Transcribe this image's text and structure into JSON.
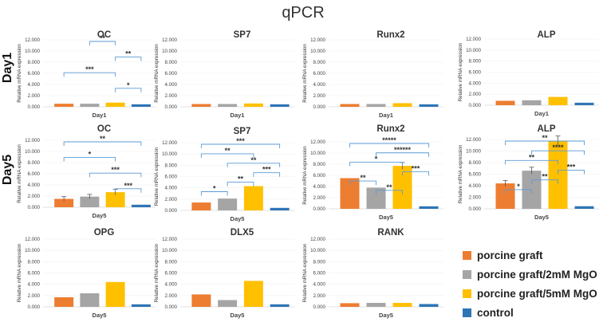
{
  "figure_title": "qPCR",
  "row_labels": [
    "Day1",
    "Day5"
  ],
  "legend": [
    {
      "label": "porcine graft",
      "color": "#ED7D31"
    },
    {
      "label": "porcine graft/2mM MgO",
      "color": "#A5A5A5"
    },
    {
      "label": "porcine graft/5mM MgO",
      "color": "#FFC000"
    },
    {
      "label": "control",
      "color": "#2E75B6"
    }
  ],
  "chart_data": [
    {
      "id": "d1-oc",
      "type": "bar",
      "title": "OC",
      "xlabel": "Day1",
      "ylabel": "Relative mRNA expression",
      "categories": [
        "porcine graft",
        "porcine graft/2mM MgO",
        "porcine graft/5mM MgO",
        "control"
      ],
      "values": [
        0.55,
        0.55,
        0.75,
        0.45
      ],
      "errors": [
        0,
        0,
        0,
        0
      ],
      "ylim": [
        0,
        12
      ],
      "yticks": [
        "0.000",
        "2.000",
        "4.000",
        "6.000",
        "8.000",
        "10.000",
        "12.000"
      ],
      "significance": [
        {
          "a": 1,
          "b": 2,
          "label": "**"
        },
        {
          "a": 2,
          "b": 3,
          "label": "**"
        },
        {
          "a": 0,
          "b": 2,
          "label": "***"
        },
        {
          "a": 2,
          "b": 3,
          "label": "*"
        }
      ]
    },
    {
      "id": "d1-sp7",
      "type": "bar",
      "title": "SP7",
      "xlabel": "Day1",
      "ylabel": "Relative mRNA expression",
      "categories": [
        "porcine graft",
        "porcine graft/2mM MgO",
        "porcine graft/5mM MgO",
        "control"
      ],
      "values": [
        0.5,
        0.5,
        0.6,
        0.45
      ],
      "errors": [
        0,
        0,
        0,
        0
      ],
      "ylim": [
        0,
        12
      ],
      "yticks": [
        "0.000",
        "2.000",
        "4.000",
        "6.000",
        "8.000",
        "10.000",
        "12.000"
      ],
      "significance": []
    },
    {
      "id": "d1-runx2",
      "type": "bar",
      "title": "Runx2",
      "xlabel": "Day1",
      "ylabel": "Relative mRNA expression",
      "categories": [
        "porcine graft",
        "porcine graft/2mM MgO",
        "porcine graft/5mM MgO",
        "control"
      ],
      "values": [
        0.5,
        0.5,
        0.65,
        0.45
      ],
      "errors": [
        0,
        0,
        0,
        0
      ],
      "ylim": [
        0,
        12
      ],
      "yticks": [
        "0.000",
        "2.000",
        "4.000",
        "6.000",
        "8.000",
        "10.000",
        "12.000"
      ],
      "significance": []
    },
    {
      "id": "d1-alp",
      "type": "bar",
      "title": "ALP",
      "xlabel": "Day1",
      "ylabel": "Relative mRNA expression",
      "categories": [
        "porcine graft",
        "porcine graft/2mM MgO",
        "porcine graft/5mM MgO",
        "control"
      ],
      "values": [
        0.8,
        0.9,
        1.5,
        0.45
      ],
      "errors": [
        0,
        0,
        0,
        0
      ],
      "ylim": [
        0,
        12
      ],
      "yticks": [
        "0.000",
        "2.000",
        "4.000",
        "6.000",
        "8.000",
        "10.000",
        "12.000"
      ],
      "significance": []
    },
    {
      "id": "d5-oc",
      "type": "bar",
      "title": "OC",
      "xlabel": "Day5",
      "ylabel": "Relative mRNA expression",
      "categories": [
        "porcine graft",
        "porcine graft/2mM MgO",
        "porcine graft/5mM MgO",
        "control"
      ],
      "values": [
        1.5,
        1.9,
        2.7,
        0.45
      ],
      "errors": [
        0.4,
        0.4,
        0.5,
        0
      ],
      "ylim": [
        0,
        12
      ],
      "yticks": [
        "0.000",
        "2.000",
        "4.000",
        "6.000",
        "8.000",
        "10.000",
        "12.000"
      ],
      "significance": [
        {
          "a": 0,
          "b": 3,
          "label": "**"
        },
        {
          "a": 0,
          "b": 2,
          "label": "*"
        },
        {
          "a": 1,
          "b": 3,
          "label": "***"
        },
        {
          "a": 2,
          "b": 3,
          "label": "***"
        }
      ]
    },
    {
      "id": "d5-sp7",
      "type": "bar",
      "title": "SP7",
      "xlabel": "Day5",
      "ylabel": "Relative mRNA expression",
      "categories": [
        "porcine graft",
        "porcine graft/2mM MgO",
        "porcine graft/5mM MgO",
        "control"
      ],
      "values": [
        1.4,
        2.1,
        4.3,
        0.45
      ],
      "errors": [
        0,
        0,
        0,
        0
      ],
      "ylim": [
        0,
        12
      ],
      "yticks": [
        "0.000",
        "2.000",
        "4.000",
        "6.000",
        "8.000",
        "10.000",
        "12.000"
      ],
      "significance": [
        {
          "a": 0,
          "b": 3,
          "label": "***"
        },
        {
          "a": 0,
          "b": 2,
          "label": "**"
        },
        {
          "a": 1,
          "b": 3,
          "label": "**"
        },
        {
          "a": 2,
          "b": 3,
          "label": "***"
        },
        {
          "a": 1,
          "b": 2,
          "label": "**"
        },
        {
          "a": 0,
          "b": 1,
          "label": "*"
        }
      ]
    },
    {
      "id": "d5-runx2",
      "type": "bar",
      "title": "Runx2",
      "xlabel": "Day5",
      "ylabel": "Relative mRNA expression",
      "categories": [
        "porcine graft",
        "porcine graft/2mM MgO",
        "porcine graft/5mM MgO",
        "control"
      ],
      "values": [
        5.5,
        3.8,
        7.7,
        0.45
      ],
      "errors": [
        0,
        0,
        0.6,
        0
      ],
      "ylim": [
        0,
        12
      ],
      "yticks": [
        "0.000",
        "2.000",
        "4.000",
        "6.000",
        "8.000",
        "10.000",
        "12.000"
      ],
      "significance": [
        {
          "a": 0,
          "b": 3,
          "label": "*****"
        },
        {
          "a": 1,
          "b": 3,
          "label": "******"
        },
        {
          "a": 0,
          "b": 2,
          "label": "*"
        },
        {
          "a": 2,
          "b": 3,
          "label": "***"
        },
        {
          "a": 0,
          "b": 1,
          "label": "**"
        },
        {
          "a": 1,
          "b": 2,
          "label": "**"
        }
      ]
    },
    {
      "id": "d5-alp",
      "type": "bar",
      "title": "ALP",
      "xlabel": "Day5",
      "ylabel": "Relative mRNA expression",
      "categories": [
        "porcine graft",
        "porcine graft/2mM MgO",
        "porcine graft/5mM MgO",
        "control"
      ],
      "values": [
        4.4,
        6.6,
        11.8,
        0.45
      ],
      "errors": [
        0.5,
        0.6,
        0.8,
        0
      ],
      "ylim": [
        0,
        12
      ],
      "yticks": [
        "0.000",
        "2.000",
        "4.000",
        "6.000",
        "8.000",
        "10.000",
        "12.000"
      ],
      "significance": [
        {
          "a": 0,
          "b": 3,
          "label": "**"
        },
        {
          "a": 1,
          "b": 3,
          "label": "****"
        },
        {
          "a": 0,
          "b": 2,
          "label": "**"
        },
        {
          "a": 2,
          "b": 3,
          "label": "***"
        },
        {
          "a": 1,
          "b": 2,
          "label": "**"
        },
        {
          "a": 0,
          "b": 1,
          "label": "*"
        }
      ]
    },
    {
      "id": "d5-opg",
      "type": "bar",
      "title": "OPG",
      "xlabel": "Day5",
      "ylabel": "Relative mRNA expression",
      "categories": [
        "porcine graft",
        "porcine graft/2mM MgO",
        "porcine graft/5mM MgO",
        "control"
      ],
      "values": [
        1.7,
        2.4,
        4.4,
        0.45
      ],
      "errors": [
        0,
        0,
        0,
        0
      ],
      "ylim": [
        0,
        12
      ],
      "yticks": [
        "0.000",
        "2.000",
        "4.000",
        "6.000",
        "8.000",
        "10.000",
        "12.000"
      ],
      "significance": []
    },
    {
      "id": "d5-dlx5",
      "type": "bar",
      "title": "DLX5",
      "xlabel": "Day5",
      "ylabel": "Relative mRNA expression",
      "categories": [
        "porcine graft",
        "porcine graft/2mM MgO",
        "porcine graft/5mM MgO",
        "control"
      ],
      "values": [
        2.2,
        1.2,
        4.6,
        0.45
      ],
      "errors": [
        0,
        0,
        0,
        0
      ],
      "ylim": [
        0,
        12
      ],
      "yticks": [
        "0.000",
        "2.000",
        "4.000",
        "6.000",
        "8.000",
        "10.000",
        "12.000"
      ],
      "significance": []
    },
    {
      "id": "d5-rank",
      "type": "bar",
      "title": "RANK",
      "xlabel": "Day5",
      "ylabel": "Relative mRNA expression",
      "categories": [
        "porcine graft",
        "porcine graft/2mM MgO",
        "porcine graft/5mM MgO",
        "control"
      ],
      "values": [
        0.65,
        0.7,
        0.7,
        0.5
      ],
      "errors": [
        0,
        0,
        0,
        0
      ],
      "ylim": [
        0,
        12
      ],
      "yticks": [
        "0.000",
        "2.000",
        "4.000",
        "6.000",
        "8.000",
        "10.000",
        "12.000"
      ],
      "significance": []
    }
  ]
}
